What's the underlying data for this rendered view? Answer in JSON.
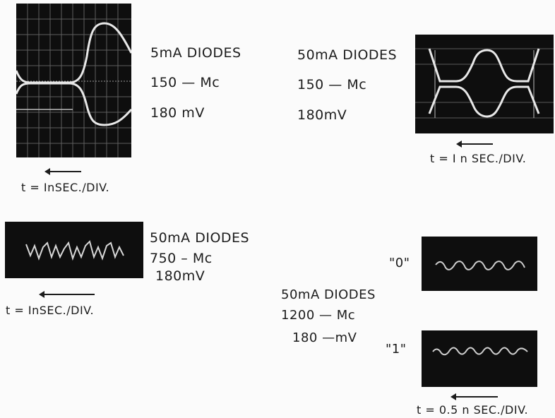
{
  "panels": {
    "p1": {
      "line1": "5mA DIODES",
      "line2": "150 — Mc",
      "line3": "180 mV",
      "time": "t = InSEC./DIV."
    },
    "p2": {
      "line1": "50mA DIODES",
      "line2": "150 — Mc",
      "line3": "180mV",
      "time": "t = I n SEC./DIV."
    },
    "p3": {
      "line1": "50mA DIODES",
      "line2": "750 – Mc",
      "line3": "180mV",
      "time": "t = InSEC./DIV."
    },
    "p4": {
      "line1": "50mA DIODES",
      "line2": "1200 — Mc",
      "line3": "180 —mV",
      "label_zero": "\"0\"",
      "label_one": "\"1\"",
      "time": "t = 0.5 n SEC./DIV."
    }
  },
  "colors": {
    "screen": "#0e0e0e",
    "grid": "#6a6a6a",
    "trace": "#e8e8e8",
    "ink": "#1c1c1c"
  }
}
